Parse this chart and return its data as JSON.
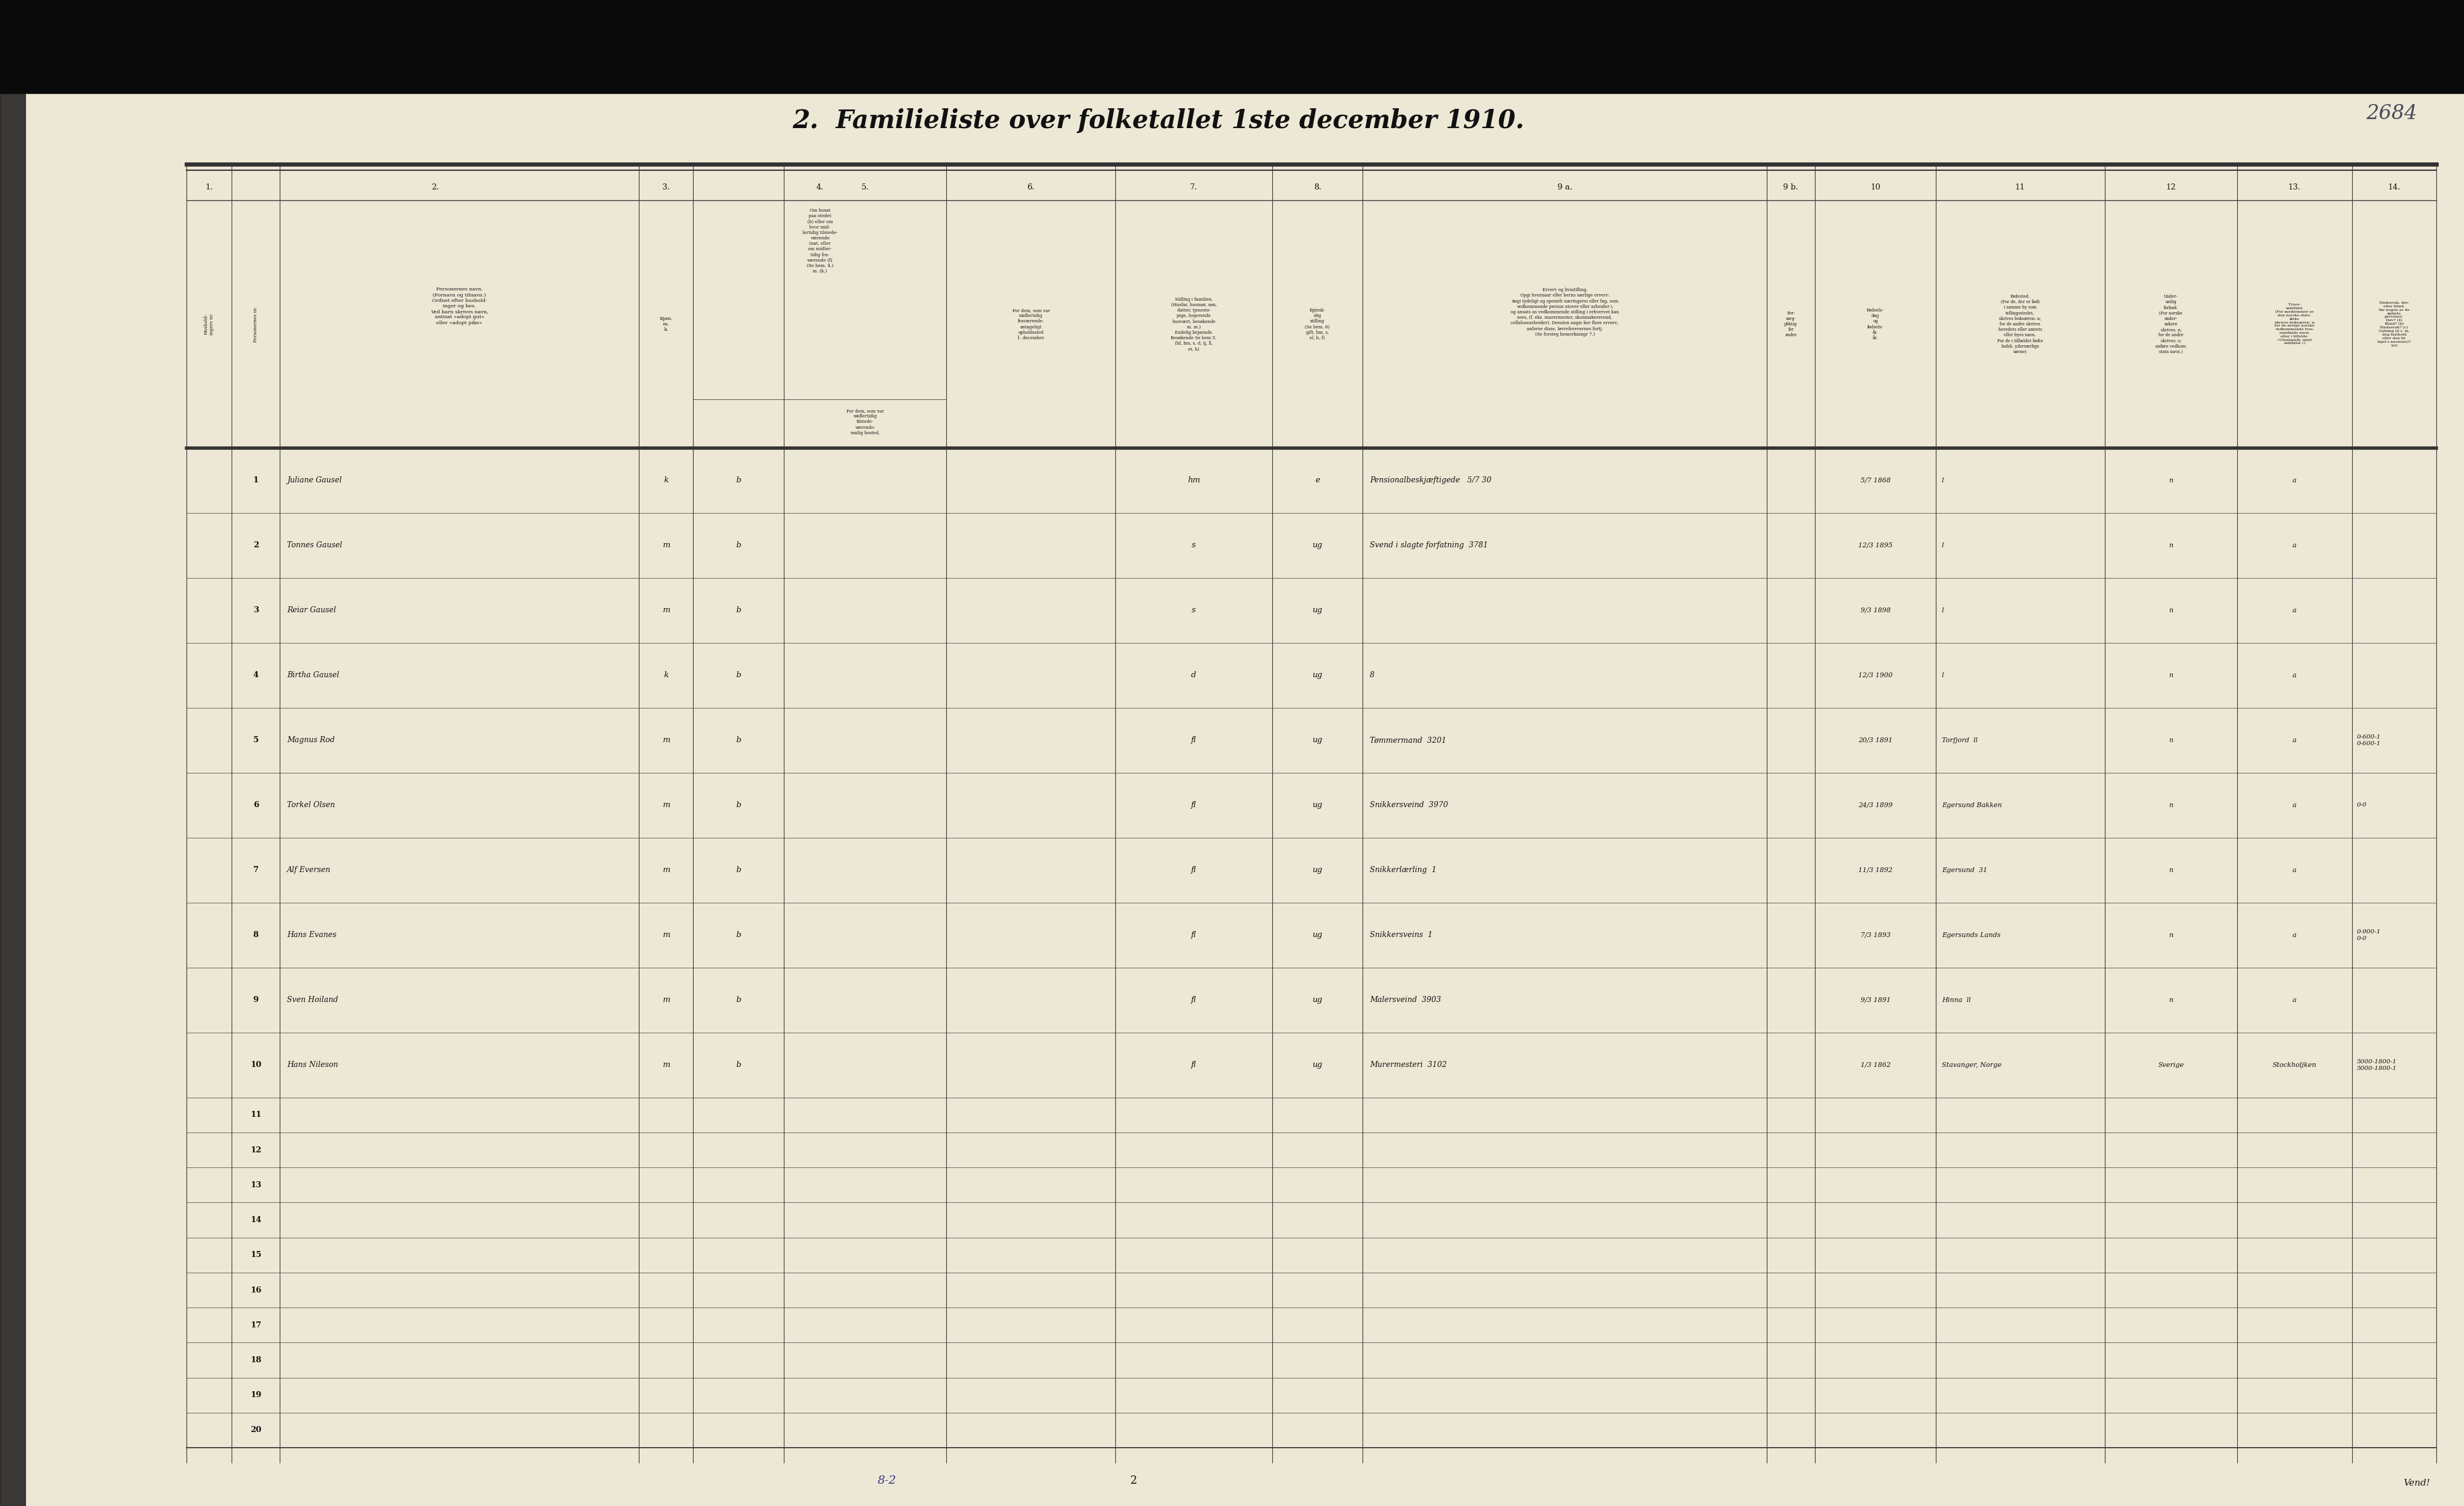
{
  "title": "2.  Familieliste over folketallet 1ste december 1910.",
  "handwritten_number": "2684",
  "page_number": "2",
  "bottom_note": "8-2",
  "bg_color": "#ede8d5",
  "line_color": "#333333",
  "rows": [
    {
      "num": 1,
      "name": "Juliane Gausel",
      "kjon": "k",
      "bosat": "b",
      "stilling": "hm",
      "egtesk": "e",
      "erverv": "Pensionalbeskjæftigede   5/7 30",
      "fodselsdag": "5/7 1868",
      "fodested": "l",
      "undersat": "n",
      "tros": "a",
      "sindssvak": ""
    },
    {
      "num": 2,
      "name": "Tonnes Gausel",
      "kjon": "m",
      "bosat": "b",
      "stilling": "s",
      "egtesk": "ug",
      "erverv": "Svend i slagte forfatning  3781",
      "fodselsdag": "12/3 1895",
      "fodested": "l",
      "undersat": "n",
      "tros": "a",
      "sindssvak": ""
    },
    {
      "num": 3,
      "name": "Reiar Gausel",
      "kjon": "m",
      "bosat": "b",
      "stilling": "s",
      "egtesk": "ug",
      "erverv": "",
      "fodselsdag": "9/3 1898",
      "fodested": "l",
      "undersat": "n",
      "tros": "a",
      "sindssvak": ""
    },
    {
      "num": 4,
      "name": "Birtha Gausel",
      "kjon": "k",
      "bosat": "b",
      "stilling": "d",
      "egtesk": "ug",
      "erverv": "8",
      "fodselsdag": "12/3 1900",
      "fodested": "l",
      "undersat": "n",
      "tros": "a",
      "sindssvak": ""
    },
    {
      "num": 5,
      "name": "Magnus Rod",
      "kjon": "m",
      "bosat": "b",
      "stilling": "fl",
      "egtesk": "ug",
      "erverv": "Tømmermand  3201",
      "fodselsdag": "20/3 1891",
      "fodested": "Torfjord  ll",
      "undersat": "n",
      "tros": "a",
      "sindssvak": "0-600-1\n0-600-1"
    },
    {
      "num": 6,
      "name": "Torkel Olsen",
      "kjon": "m",
      "bosat": "b",
      "stilling": "fl",
      "egtesk": "ug",
      "erverv": "Snikkersveind  3970",
      "fodselsdag": "24/3 1899",
      "fodested": "Egersund Bakken",
      "undersat": "n",
      "tros": "a",
      "sindssvak": "0-0"
    },
    {
      "num": 7,
      "name": "Alf Eversen",
      "kjon": "m",
      "bosat": "b",
      "stilling": "fl",
      "egtesk": "ug",
      "erverv": "Snikkerlærling  1",
      "fodselsdag": "11/3 1892",
      "fodested": "Egersund  31",
      "undersat": "n",
      "tros": "a",
      "sindssvak": ""
    },
    {
      "num": 8,
      "name": "Hans Evanes",
      "kjon": "m",
      "bosat": "b",
      "stilling": "fl",
      "egtesk": "ug",
      "erverv": "Snikkersveins  1",
      "fodselsdag": "7/3 1893",
      "fodested": "Egersunds Lands",
      "undersat": "n",
      "tros": "a",
      "sindssvak": "0-900-1\n0-0"
    },
    {
      "num": 9,
      "name": "Sven Hoiland",
      "kjon": "m",
      "bosat": "b",
      "stilling": "fl",
      "egtesk": "ug",
      "erverv": "Malersveind  3903",
      "fodselsdag": "9/3 1891",
      "fodested": "Hinna  ll",
      "undersat": "n",
      "tros": "a",
      "sindssvak": ""
    },
    {
      "num": 10,
      "name": "Hans Nileson",
      "kjon": "m",
      "bosat": "b",
      "stilling": "fl",
      "egtesk": "ug",
      "erverv": "Murermesteri  3102",
      "fodselsdag": "1/3 1862",
      "fodested": "Stavanger, Norge",
      "undersat": "Sverige",
      "tros": "Stockholjken",
      "sindssvak": "5000-1800-1\n5000-1800-1"
    },
    {
      "num": 11,
      "name": "",
      "kjon": "",
      "bosat": "",
      "stilling": "",
      "egtesk": "",
      "erverv": "",
      "fodselsdag": "",
      "fodested": "",
      "undersat": "",
      "tros": "",
      "sindssvak": ""
    },
    {
      "num": 12,
      "name": "",
      "kjon": "",
      "bosat": "",
      "stilling": "",
      "egtesk": "",
      "erverv": "",
      "fodselsdag": "",
      "fodested": "",
      "undersat": "",
      "tros": "",
      "sindssvak": ""
    },
    {
      "num": 13,
      "name": "",
      "kjon": "",
      "bosat": "",
      "stilling": "",
      "egtesk": "",
      "erverv": "",
      "fodselsdag": "",
      "fodested": "",
      "undersat": "",
      "tros": "",
      "sindssvak": ""
    },
    {
      "num": 14,
      "name": "",
      "kjon": "",
      "bosat": "",
      "stilling": "",
      "egtesk": "",
      "erverv": "",
      "fodselsdag": "",
      "fodested": "",
      "undersat": "",
      "tros": "",
      "sindssvak": ""
    },
    {
      "num": 15,
      "name": "",
      "kjon": "",
      "bosat": "",
      "stilling": "",
      "egtesk": "",
      "erverv": "",
      "fodselsdag": "",
      "fodested": "",
      "undersat": "",
      "tros": "",
      "sindssvak": ""
    },
    {
      "num": 16,
      "name": "",
      "kjon": "",
      "bosat": "",
      "stilling": "",
      "egtesk": "",
      "erverv": "",
      "fodselsdag": "",
      "fodested": "",
      "undersat": "",
      "tros": "",
      "sindssvak": ""
    },
    {
      "num": 17,
      "name": "",
      "kjon": "",
      "bosat": "",
      "stilling": "",
      "egtesk": "",
      "erverv": "",
      "fodselsdag": "",
      "fodested": "",
      "undersat": "",
      "tros": "",
      "sindssvak": ""
    },
    {
      "num": 18,
      "name": "",
      "kjon": "",
      "bosat": "",
      "stilling": "",
      "egtesk": "",
      "erverv": "",
      "fodselsdag": "",
      "fodested": "",
      "undersat": "",
      "tros": "",
      "sindssvak": ""
    },
    {
      "num": 19,
      "name": "",
      "kjon": "",
      "bosat": "",
      "stilling": "",
      "egtesk": "",
      "erverv": "",
      "fodselsdag": "",
      "fodested": "",
      "undersat": "",
      "tros": "",
      "sindssvak": ""
    },
    {
      "num": 20,
      "name": "",
      "kjon": "",
      "bosat": "",
      "stilling": "",
      "egtesk": "",
      "erverv": "",
      "fodselsdag": "",
      "fodested": "",
      "undersat": "",
      "tros": "",
      "sindssvak": ""
    }
  ]
}
